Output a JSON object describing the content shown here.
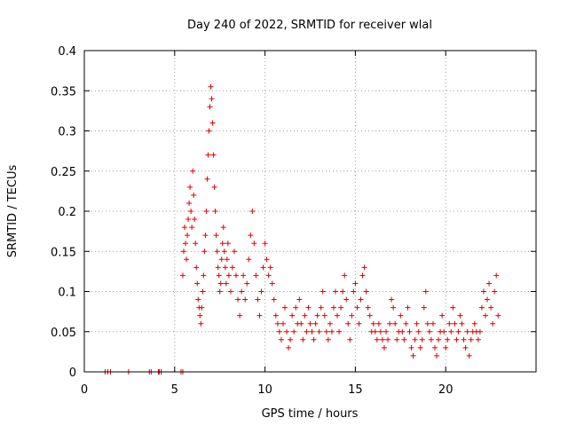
{
  "chart_data": {
    "type": "scatter",
    "title": "Day 240 of 2022, SRMTID for receiver wlal",
    "xlabel": "GPS time / hours",
    "ylabel": "SRMTID / TECUs",
    "xlim": [
      0,
      25
    ],
    "ylim": [
      0,
      0.4
    ],
    "xticks": [
      0,
      5,
      10,
      15,
      20
    ],
    "yticks": [
      0,
      0.05,
      0.1,
      0.15,
      0.2,
      0.25,
      0.3,
      0.35,
      0.4
    ],
    "xtick_labels": [
      "0",
      "5",
      "10",
      "15",
      "20"
    ],
    "ytick_labels": [
      "0",
      "0.05",
      "0.1",
      "0.15",
      "0.2",
      "0.25",
      "0.3",
      "0.35",
      "0.4"
    ],
    "grid": true,
    "marker": "+",
    "color": "#e00000",
    "series": [
      {
        "name": "SRMTID",
        "points": [
          [
            1.15,
            0
          ],
          [
            1.3,
            0
          ],
          [
            1.45,
            0
          ],
          [
            2.45,
            0
          ],
          [
            3.6,
            0
          ],
          [
            3.7,
            0
          ],
          [
            4.1,
            0
          ],
          [
            4.15,
            0
          ],
          [
            4.25,
            0
          ],
          [
            5.35,
            0
          ],
          [
            5.45,
            0
          ],
          [
            5.45,
            0.12
          ],
          [
            5.5,
            0.15
          ],
          [
            5.55,
            0.18
          ],
          [
            5.6,
            0.16
          ],
          [
            5.65,
            0.14
          ],
          [
            5.7,
            0.17
          ],
          [
            5.75,
            0.19
          ],
          [
            5.8,
            0.21
          ],
          [
            5.85,
            0.23
          ],
          [
            5.9,
            0.2
          ],
          [
            5.95,
            0.18
          ],
          [
            6.0,
            0.25
          ],
          [
            6.05,
            0.22
          ],
          [
            6.1,
            0.19
          ],
          [
            6.15,
            0.16
          ],
          [
            6.2,
            0.13
          ],
          [
            6.25,
            0.11
          ],
          [
            6.3,
            0.09
          ],
          [
            6.35,
            0.08
          ],
          [
            6.4,
            0.07
          ],
          [
            6.45,
            0.06
          ],
          [
            6.5,
            0.08
          ],
          [
            6.55,
            0.1
          ],
          [
            6.6,
            0.12
          ],
          [
            6.65,
            0.15
          ],
          [
            6.7,
            0.17
          ],
          [
            6.75,
            0.2
          ],
          [
            6.8,
            0.24
          ],
          [
            6.85,
            0.27
          ],
          [
            6.9,
            0.3
          ],
          [
            6.95,
            0.33
          ],
          [
            7.0,
            0.355
          ],
          [
            7.05,
            0.34
          ],
          [
            7.1,
            0.31
          ],
          [
            7.15,
            0.27
          ],
          [
            7.2,
            0.23
          ],
          [
            7.25,
            0.2
          ],
          [
            7.3,
            0.17
          ],
          [
            7.35,
            0.15
          ],
          [
            7.4,
            0.13
          ],
          [
            7.45,
            0.12
          ],
          [
            7.5,
            0.1
          ],
          [
            7.55,
            0.11
          ],
          [
            7.6,
            0.14
          ],
          [
            7.65,
            0.16
          ],
          [
            7.7,
            0.18
          ],
          [
            7.75,
            0.15
          ],
          [
            7.8,
            0.13
          ],
          [
            7.85,
            0.11
          ],
          [
            7.9,
            0.14
          ],
          [
            7.95,
            0.16
          ],
          [
            8.0,
            0.12
          ],
          [
            8.1,
            0.1
          ],
          [
            8.2,
            0.13
          ],
          [
            8.3,
            0.15
          ],
          [
            8.4,
            0.12
          ],
          [
            8.5,
            0.09
          ],
          [
            8.6,
            0.07
          ],
          [
            8.7,
            0.1
          ],
          [
            8.8,
            0.12
          ],
          [
            8.9,
            0.09
          ],
          [
            9.0,
            0.11
          ],
          [
            9.1,
            0.14
          ],
          [
            9.2,
            0.17
          ],
          [
            9.3,
            0.2
          ],
          [
            9.4,
            0.16
          ],
          [
            9.5,
            0.12
          ],
          [
            9.6,
            0.09
          ],
          [
            9.7,
            0.07
          ],
          [
            9.8,
            0.1
          ],
          [
            9.9,
            0.13
          ],
          [
            10.0,
            0.16
          ],
          [
            10.1,
            0.14
          ],
          [
            10.2,
            0.12
          ],
          [
            10.3,
            0.13
          ],
          [
            10.4,
            0.11
          ],
          [
            10.5,
            0.09
          ],
          [
            10.6,
            0.07
          ],
          [
            10.7,
            0.06
          ],
          [
            10.8,
            0.05
          ],
          [
            10.9,
            0.04
          ],
          [
            11.0,
            0.06
          ],
          [
            11.1,
            0.08
          ],
          [
            11.2,
            0.05
          ],
          [
            11.3,
            0.03
          ],
          [
            11.4,
            0.04
          ],
          [
            11.5,
            0.07
          ],
          [
            11.6,
            0.05
          ],
          [
            11.7,
            0.08
          ],
          [
            11.8,
            0.06
          ],
          [
            11.9,
            0.09
          ],
          [
            12.0,
            0.06
          ],
          [
            12.1,
            0.04
          ],
          [
            12.2,
            0.07
          ],
          [
            12.3,
            0.05
          ],
          [
            12.4,
            0.08
          ],
          [
            12.5,
            0.06
          ],
          [
            12.6,
            0.05
          ],
          [
            12.7,
            0.04
          ],
          [
            12.8,
            0.06
          ],
          [
            12.9,
            0.07
          ],
          [
            13.0,
            0.05
          ],
          [
            13.1,
            0.08
          ],
          [
            13.2,
            0.1
          ],
          [
            13.3,
            0.07
          ],
          [
            13.4,
            0.05
          ],
          [
            13.5,
            0.04
          ],
          [
            13.6,
            0.06
          ],
          [
            13.7,
            0.05
          ],
          [
            13.8,
            0.08
          ],
          [
            13.9,
            0.1
          ],
          [
            14.0,
            0.07
          ],
          [
            14.1,
            0.05
          ],
          [
            14.2,
            0.08
          ],
          [
            14.3,
            0.1
          ],
          [
            14.4,
            0.12
          ],
          [
            14.5,
            0.09
          ],
          [
            14.6,
            0.06
          ],
          [
            14.7,
            0.04
          ],
          [
            14.8,
            0.07
          ],
          [
            14.9,
            0.1
          ],
          [
            15.0,
            0.11
          ],
          [
            15.1,
            0.08
          ],
          [
            15.2,
            0.06
          ],
          [
            15.3,
            0.09
          ],
          [
            15.4,
            0.12
          ],
          [
            15.5,
            0.13
          ],
          [
            15.6,
            0.1
          ],
          [
            15.7,
            0.08
          ],
          [
            15.8,
            0.07
          ],
          [
            15.9,
            0.05
          ],
          [
            16.0,
            0.06
          ],
          [
            16.1,
            0.05
          ],
          [
            16.2,
            0.04
          ],
          [
            16.3,
            0.06
          ],
          [
            16.4,
            0.05
          ],
          [
            16.5,
            0.04
          ],
          [
            16.6,
            0.03
          ],
          [
            16.7,
            0.05
          ],
          [
            16.8,
            0.04
          ],
          [
            16.9,
            0.06
          ],
          [
            17.0,
            0.09
          ],
          [
            17.1,
            0.08
          ],
          [
            17.2,
            0.06
          ],
          [
            17.3,
            0.04
          ],
          [
            17.4,
            0.05
          ],
          [
            17.5,
            0.07
          ],
          [
            17.6,
            0.05
          ],
          [
            17.7,
            0.04
          ],
          [
            17.8,
            0.06
          ],
          [
            17.9,
            0.08
          ],
          [
            18.0,
            0.05
          ],
          [
            18.1,
            0.03
          ],
          [
            18.2,
            0.02
          ],
          [
            18.3,
            0.04
          ],
          [
            18.4,
            0.06
          ],
          [
            18.5,
            0.05
          ],
          [
            18.6,
            0.03
          ],
          [
            18.7,
            0.04
          ],
          [
            18.8,
            0.08
          ],
          [
            18.9,
            0.1
          ],
          [
            19.0,
            0.06
          ],
          [
            19.1,
            0.05
          ],
          [
            19.2,
            0.04
          ],
          [
            19.3,
            0.06
          ],
          [
            19.4,
            0.03
          ],
          [
            19.5,
            0.02
          ],
          [
            19.6,
            0.04
          ],
          [
            19.7,
            0.05
          ],
          [
            19.8,
            0.07
          ],
          [
            19.9,
            0.05
          ],
          [
            20.0,
            0.03
          ],
          [
            20.1,
            0.04
          ],
          [
            20.2,
            0.06
          ],
          [
            20.3,
            0.05
          ],
          [
            20.4,
            0.08
          ],
          [
            20.5,
            0.06
          ],
          [
            20.6,
            0.04
          ],
          [
            20.7,
            0.05
          ],
          [
            20.8,
            0.07
          ],
          [
            20.9,
            0.06
          ],
          [
            21.0,
            0.04
          ],
          [
            21.1,
            0.03
          ],
          [
            21.2,
            0.05
          ],
          [
            21.3,
            0.02
          ],
          [
            21.4,
            0.04
          ],
          [
            21.5,
            0.05
          ],
          [
            21.6,
            0.06
          ],
          [
            21.7,
            0.05
          ],
          [
            21.8,
            0.04
          ],
          [
            21.9,
            0.05
          ],
          [
            22.0,
            0.08
          ],
          [
            22.1,
            0.1
          ],
          [
            22.2,
            0.07
          ],
          [
            22.3,
            0.09
          ],
          [
            22.4,
            0.11
          ],
          [
            22.5,
            0.08
          ],
          [
            22.6,
            0.06
          ],
          [
            22.7,
            0.1
          ],
          [
            22.8,
            0.12
          ],
          [
            22.9,
            0.07
          ]
        ]
      }
    ]
  }
}
